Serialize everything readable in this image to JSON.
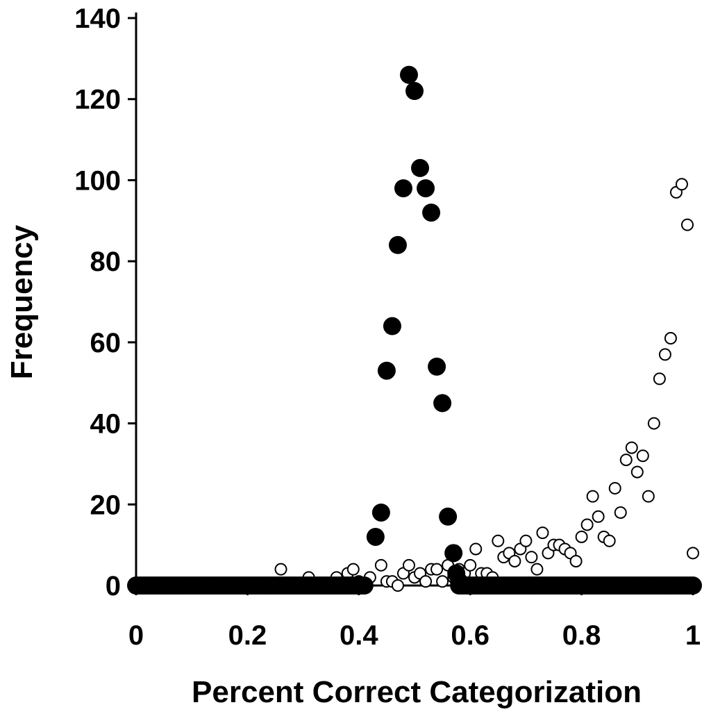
{
  "chart_data": {
    "type": "scatter",
    "title": "",
    "xlabel": "Percent Correct Categorization",
    "ylabel": "Frequency",
    "xlim": [
      0,
      1
    ],
    "ylim": [
      0,
      140
    ],
    "xticks": [
      0,
      0.2,
      0.4,
      0.6,
      0.8,
      1
    ],
    "xtick_labels": [
      "0",
      "0.2",
      "0.4",
      "0.6",
      "0.8",
      "1"
    ],
    "yticks": [
      0,
      20,
      40,
      60,
      80,
      100,
      120,
      140
    ],
    "ytick_labels": [
      "0",
      "20",
      "40",
      "60",
      "80",
      "100",
      "120",
      "140"
    ],
    "grid": false,
    "legend": "none",
    "series": [
      {
        "marker": "filled-circle",
        "color": "#000000",
        "points": [
          [
            0.43,
            12
          ],
          [
            0.44,
            18
          ],
          [
            0.45,
            53
          ],
          [
            0.46,
            64
          ],
          [
            0.47,
            84
          ],
          [
            0.48,
            98
          ],
          [
            0.49,
            126
          ],
          [
            0.5,
            122
          ],
          [
            0.51,
            103
          ],
          [
            0.52,
            98
          ],
          [
            0.53,
            92
          ],
          [
            0.54,
            54
          ],
          [
            0.55,
            45
          ],
          [
            0.56,
            17
          ],
          [
            0.57,
            8
          ],
          [
            0.575,
            3
          ],
          [
            0.58,
            1
          ]
        ],
        "zero_run": [
          [
            0.0,
            0.41
          ],
          [
            0.58,
            1.0
          ]
        ],
        "zero_run_value": 0
      },
      {
        "marker": "open-circle",
        "color": "#000000",
        "points": [
          [
            0.26,
            4
          ],
          [
            0.31,
            2
          ],
          [
            0.36,
            2
          ],
          [
            0.38,
            3
          ],
          [
            0.39,
            4
          ],
          [
            0.4,
            1
          ],
          [
            0.42,
            2
          ],
          [
            0.44,
            5
          ],
          [
            0.45,
            1
          ],
          [
            0.46,
            1
          ],
          [
            0.47,
            0
          ],
          [
            0.48,
            3
          ],
          [
            0.49,
            5
          ],
          [
            0.5,
            2
          ],
          [
            0.51,
            3
          ],
          [
            0.52,
            1
          ],
          [
            0.53,
            4
          ],
          [
            0.54,
            4
          ],
          [
            0.55,
            1
          ],
          [
            0.56,
            5
          ],
          [
            0.57,
            2
          ],
          [
            0.58,
            4
          ],
          [
            0.59,
            3
          ],
          [
            0.6,
            5
          ],
          [
            0.61,
            9
          ],
          [
            0.62,
            3
          ],
          [
            0.63,
            3
          ],
          [
            0.64,
            2
          ],
          [
            0.65,
            11
          ],
          [
            0.66,
            7
          ],
          [
            0.67,
            8
          ],
          [
            0.68,
            6
          ],
          [
            0.69,
            9
          ],
          [
            0.7,
            11
          ],
          [
            0.71,
            7
          ],
          [
            0.72,
            4
          ],
          [
            0.73,
            13
          ],
          [
            0.74,
            8
          ],
          [
            0.75,
            10
          ],
          [
            0.76,
            10
          ],
          [
            0.77,
            9
          ],
          [
            0.78,
            8
          ],
          [
            0.79,
            6
          ],
          [
            0.8,
            12
          ],
          [
            0.81,
            15
          ],
          [
            0.82,
            22
          ],
          [
            0.83,
            17
          ],
          [
            0.84,
            12
          ],
          [
            0.85,
            11
          ],
          [
            0.86,
            24
          ],
          [
            0.87,
            18
          ],
          [
            0.88,
            31
          ],
          [
            0.89,
            34
          ],
          [
            0.9,
            28
          ],
          [
            0.91,
            32
          ],
          [
            0.92,
            22
          ],
          [
            0.93,
            40
          ],
          [
            0.94,
            51
          ],
          [
            0.95,
            57
          ],
          [
            0.96,
            61
          ],
          [
            0.97,
            97
          ],
          [
            0.98,
            99
          ],
          [
            0.99,
            89
          ],
          [
            1.0,
            8
          ]
        ]
      }
    ]
  }
}
